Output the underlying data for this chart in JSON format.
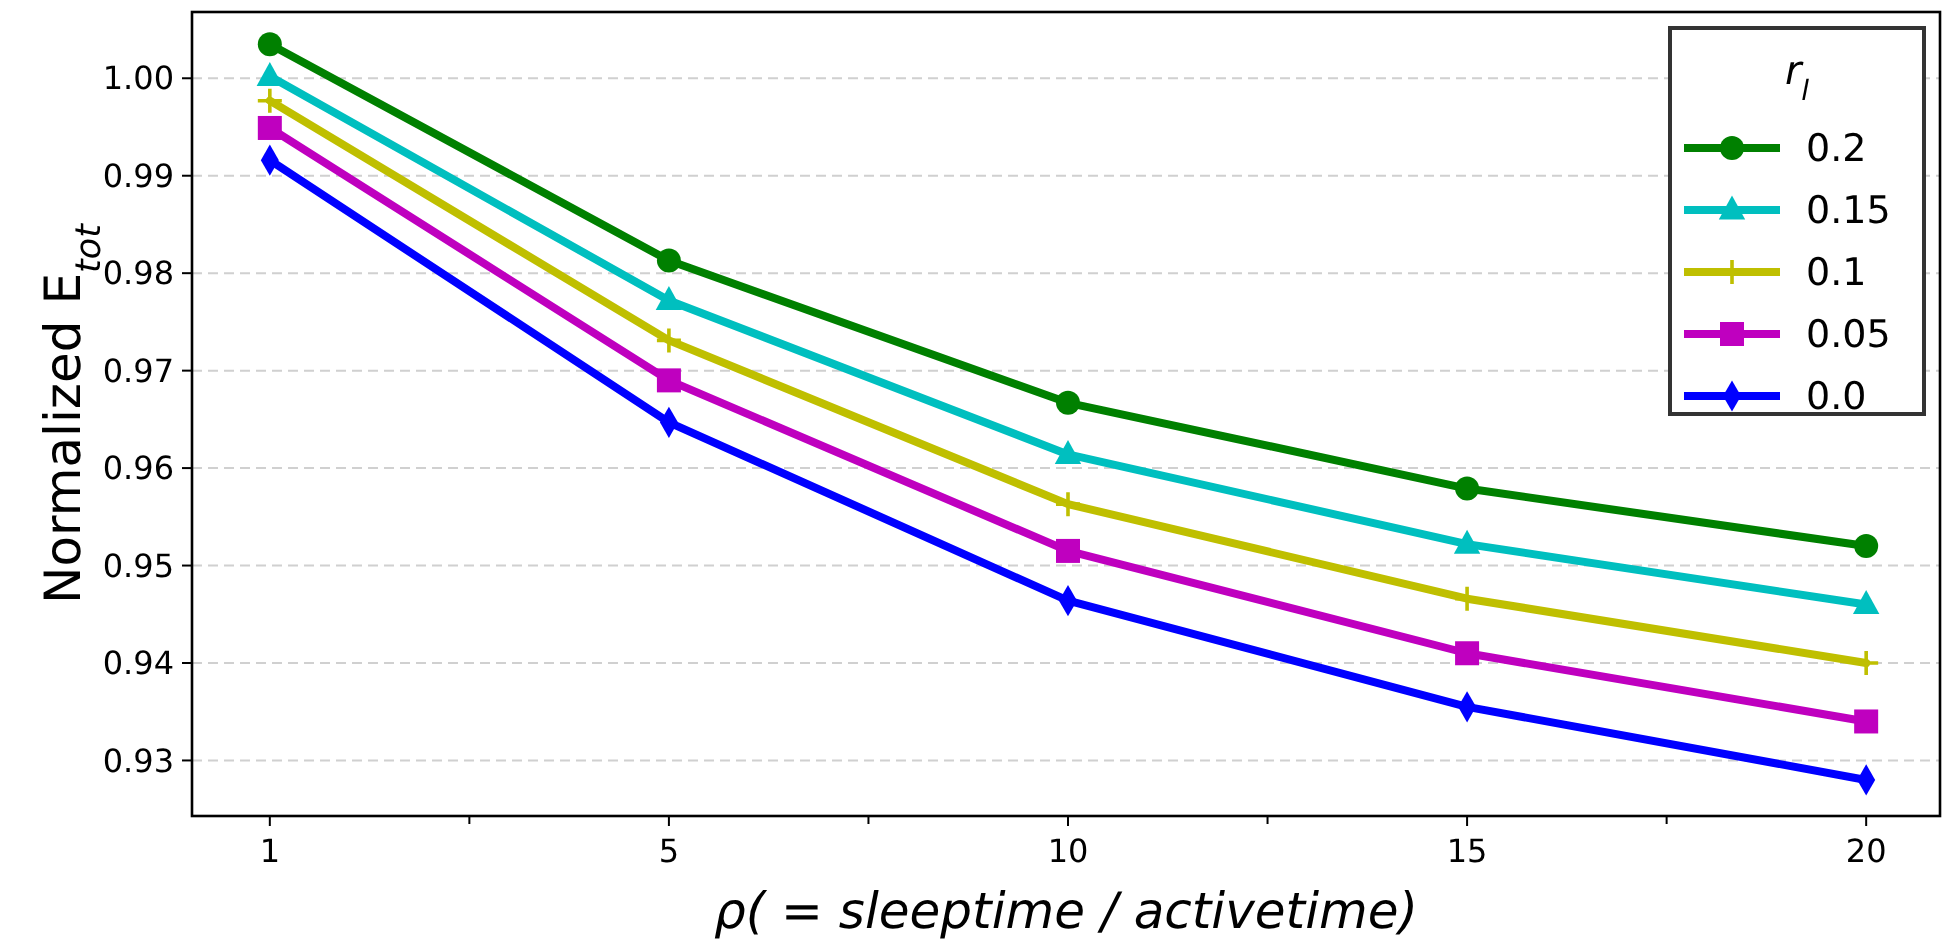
{
  "chart_data": {
    "type": "line",
    "xlabel": "ρ( = sleeptime / activetime)",
    "ylabel": "Normalized E$_{tot}$",
    "legend_title": "r$_{l}$",
    "categories": [
      "1",
      "5",
      "10",
      "15",
      "20"
    ],
    "ylim": [
      0.9243,
      1.0068
    ],
    "yticks": [
      {
        "value": 0.93,
        "label": "0.93"
      },
      {
        "value": 0.94,
        "label": "0.94"
      },
      {
        "value": 0.95,
        "label": "0.95"
      },
      {
        "value": 0.96,
        "label": "0.96"
      },
      {
        "value": 0.97,
        "label": "0.97"
      },
      {
        "value": 0.98,
        "label": "0.98"
      },
      {
        "value": 0.99,
        "label": "0.99"
      },
      {
        "value": 1.0,
        "label": "1.00"
      }
    ],
    "grid": "y",
    "legend": "top right",
    "line_style": "solid",
    "series": [
      {
        "name": "0.2",
        "color": "#008000",
        "marker": "circle",
        "values": [
          1.0035,
          0.9813,
          0.9667,
          0.9579,
          0.952
        ]
      },
      {
        "name": "0.15",
        "color": "#00bfbf",
        "marker": "triangle",
        "values": [
          1.0002,
          0.9772,
          0.9614,
          0.9522,
          0.946
        ]
      },
      {
        "name": "0.1",
        "color": "#bfbf00",
        "marker": "cross",
        "values": [
          0.9977,
          0.9731,
          0.9563,
          0.9466,
          0.94
        ]
      },
      {
        "name": "0.05",
        "color": "#bf00bf",
        "marker": "square",
        "values": [
          0.9949,
          0.969,
          0.9515,
          0.941,
          0.934
        ]
      },
      {
        "name": "0.0",
        "color": "#0000ff",
        "marker": "diamond",
        "values": [
          0.9916,
          0.9647,
          0.9464,
          0.9355,
          0.928
        ]
      }
    ]
  }
}
